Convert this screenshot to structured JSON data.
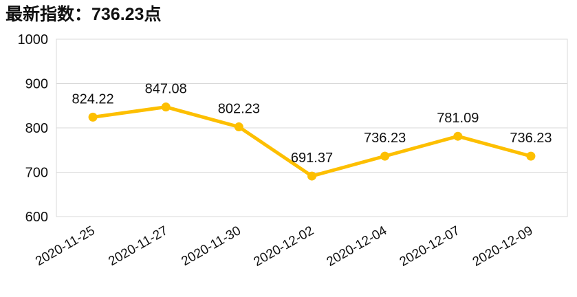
{
  "chart_data": {
    "type": "line",
    "title": "最新指数：736.23点",
    "categories": [
      "2020-11-25",
      "2020-11-27",
      "2020-11-30",
      "2020-12-02",
      "2020-12-04",
      "2020-12-07",
      "2020-12-09"
    ],
    "values": [
      824.22,
      847.08,
      802.23,
      691.37,
      736.23,
      781.09,
      736.23
    ],
    "color": "#fdbf00",
    "ylim": [
      600,
      1000
    ],
    "yticks": [
      600,
      700,
      800,
      900,
      1000
    ],
    "grid": true,
    "data_labels": true
  }
}
